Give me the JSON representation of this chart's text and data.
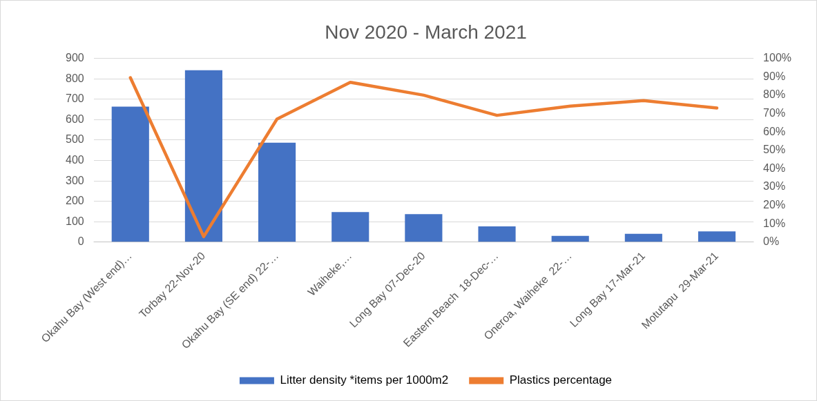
{
  "chart_data": {
    "type": "bar",
    "title": "Nov 2020 - March 2021",
    "categories": [
      "Okahu Bay (West end)…",
      "Torbay 22-Nov-20",
      "Okahu Bay (SE end) 22-…",
      "Waiheke,…",
      "Long Bay 07-Dec-20",
      "Eastern Beach  18-Dec-…",
      "Oneroa, Waiheke  22-…",
      "Long Bay 17-Mar-21",
      "Motutapu  29-Mar-21"
    ],
    "series": [
      {
        "name": "Litter density *items per 1000m2",
        "color": "#4472c4",
        "values": [
          664,
          842,
          487,
          147,
          137,
          77,
          31,
          41,
          53
        ]
      },
      {
        "name": "Plastics percentage",
        "type": "line",
        "axis": "y2",
        "color": "#ed7d31",
        "values": [
          89.5,
          3,
          67,
          87,
          80,
          69,
          74,
          77,
          73
        ]
      }
    ],
    "ylim": [
      0,
      900
    ],
    "yticks": [
      0,
      100,
      200,
      300,
      400,
      500,
      600,
      700,
      800,
      900
    ],
    "y2lim": [
      0,
      100
    ],
    "y2ticks": [
      {
        "value": 0,
        "label": "0%"
      },
      {
        "value": 10,
        "label": "10%"
      },
      {
        "value": 20,
        "label": "20%"
      },
      {
        "value": 30,
        "label": "30%"
      },
      {
        "value": 40,
        "label": "40%"
      },
      {
        "value": 50,
        "label": "50%"
      },
      {
        "value": 60,
        "label": "60%"
      },
      {
        "value": 70,
        "label": "70%"
      },
      {
        "value": 80,
        "label": "80%"
      },
      {
        "value": 90,
        "label": "90%"
      },
      {
        "value": 100,
        "label": "100%"
      }
    ],
    "grid": "y",
    "legend": "bottom",
    "marker": "none",
    "line_style": "solid"
  }
}
